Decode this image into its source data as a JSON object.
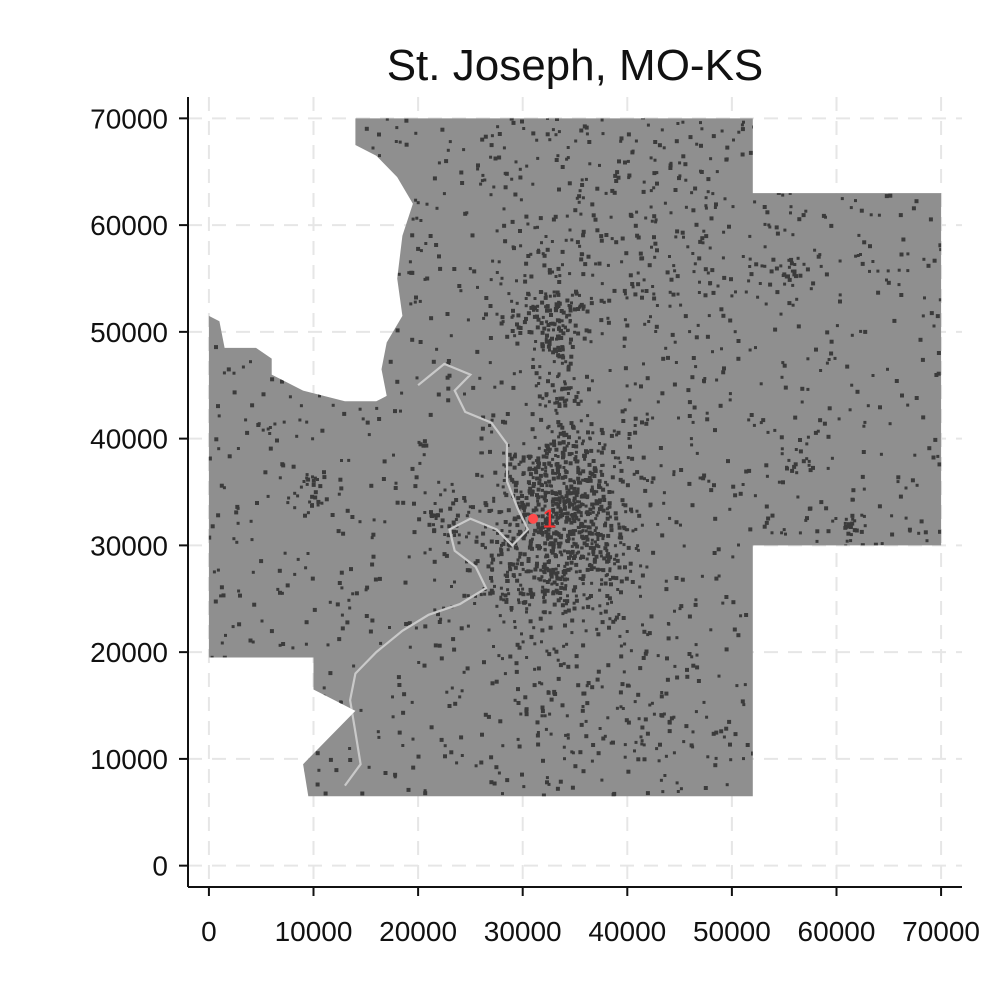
{
  "chart_data": {
    "type": "scatter",
    "title": "St. Joseph, MO-KS",
    "xlabel": "",
    "ylabel": "",
    "xlim": [
      -2000,
      72000
    ],
    "ylim": [
      -2000,
      72000
    ],
    "xticks": [
      0,
      10000,
      20000,
      30000,
      40000,
      50000,
      60000,
      70000
    ],
    "yticks": [
      0,
      10000,
      20000,
      30000,
      40000,
      50000,
      60000,
      70000
    ],
    "grid": true,
    "fill_color": "#8f8f8f",
    "dot_color": "#3b3b3b",
    "highlight_color": "#ff4b4b",
    "region_outline": [
      [
        14000,
        70000
      ],
      [
        52000,
        70000
      ],
      [
        52000,
        63000
      ],
      [
        70000,
        63000
      ],
      [
        70000,
        30000
      ],
      [
        52000,
        30000
      ],
      [
        52000,
        6500
      ],
      [
        9500,
        6500
      ],
      [
        9000,
        9500
      ],
      [
        11500,
        12000
      ],
      [
        14000,
        14500
      ],
      [
        10000,
        16500
      ],
      [
        10000,
        19500
      ],
      [
        0,
        19500
      ],
      [
        0,
        51500
      ],
      [
        1000,
        51000
      ],
      [
        1500,
        48500
      ],
      [
        4500,
        48500
      ],
      [
        6000,
        47500
      ],
      [
        6000,
        46000
      ],
      [
        9000,
        44500
      ],
      [
        13000,
        43500
      ],
      [
        16000,
        43500
      ],
      [
        17000,
        44000
      ],
      [
        16500,
        46500
      ],
      [
        17000,
        49000
      ],
      [
        18500,
        51500
      ],
      [
        18000,
        55000
      ],
      [
        18500,
        59000
      ],
      [
        19500,
        62000
      ],
      [
        18000,
        64500
      ],
      [
        16000,
        66500
      ],
      [
        14000,
        67500
      ]
    ],
    "river_path": [
      [
        13000,
        7500
      ],
      [
        14500,
        9500
      ],
      [
        14000,
        12500
      ],
      [
        13500,
        15500
      ],
      [
        14000,
        18000
      ],
      [
        16000,
        20000
      ],
      [
        18500,
        22000
      ],
      [
        21000,
        23500
      ],
      [
        24000,
        24500
      ],
      [
        26500,
        26000
      ],
      [
        25500,
        28000
      ],
      [
        23500,
        29500
      ],
      [
        23000,
        31500
      ],
      [
        25000,
        32500
      ],
      [
        27500,
        31500
      ],
      [
        29000,
        30000
      ],
      [
        30500,
        31500
      ],
      [
        29500,
        33500
      ],
      [
        28500,
        36000
      ],
      [
        28500,
        39500
      ],
      [
        27000,
        41500
      ],
      [
        24500,
        42500
      ],
      [
        23500,
        44500
      ],
      [
        25000,
        46000
      ],
      [
        22500,
        47000
      ],
      [
        20000,
        45000
      ]
    ],
    "clusters": [
      {
        "x": 34000,
        "y": 33000,
        "sx": 3500,
        "sy": 4000,
        "n": 650
      },
      {
        "x": 33000,
        "y": 27500,
        "sx": 4000,
        "sy": 2500,
        "n": 180
      },
      {
        "x": 32500,
        "y": 51500,
        "sx": 1800,
        "sy": 1600,
        "n": 100
      },
      {
        "x": 33500,
        "y": 44000,
        "sx": 1200,
        "sy": 6000,
        "n": 150
      },
      {
        "x": 22500,
        "y": 32500,
        "sx": 1200,
        "sy": 1200,
        "n": 35
      },
      {
        "x": 10000,
        "y": 35000,
        "sx": 1000,
        "sy": 1000,
        "n": 25
      },
      {
        "x": 56000,
        "y": 56000,
        "sx": 900,
        "sy": 900,
        "n": 20
      },
      {
        "x": 61500,
        "y": 31500,
        "sx": 700,
        "sy": 700,
        "n": 20
      },
      {
        "x": 56500,
        "y": 37500,
        "sx": 900,
        "sy": 900,
        "n": 15
      },
      {
        "x": 36000,
        "y": 15000,
        "sx": 6000,
        "sy": 6000,
        "n": 120
      },
      {
        "x": 40000,
        "y": 60000,
        "sx": 8000,
        "sy": 7000,
        "n": 200
      }
    ],
    "scatter_count": 1600,
    "center_points": [
      {
        "label": "1",
        "x": 31000,
        "y": 32500
      }
    ]
  }
}
